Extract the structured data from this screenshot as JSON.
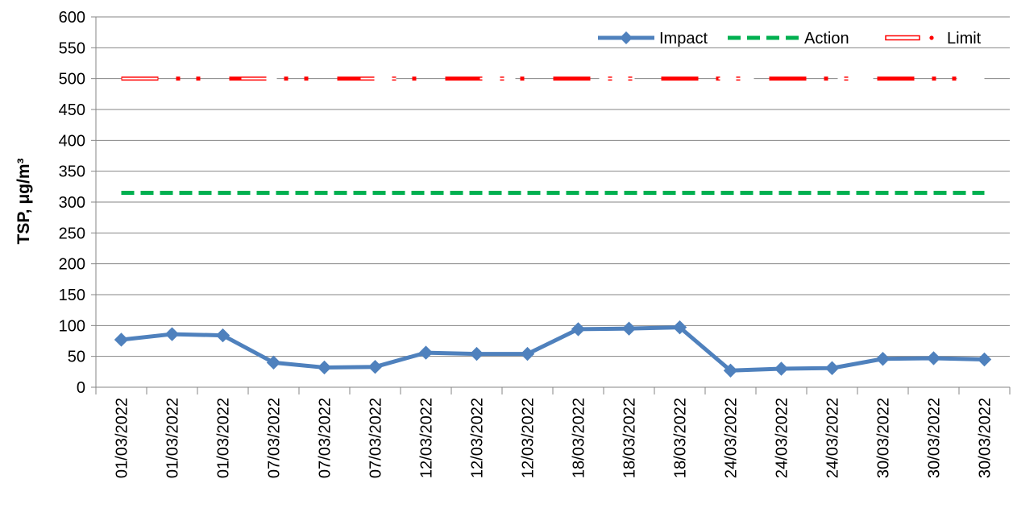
{
  "chart_data": {
    "type": "line",
    "title": "",
    "xlabel": "",
    "ylabel": "TSP, μg/m³",
    "ylim": [
      0,
      600
    ],
    "y_ticks": [
      0,
      50,
      100,
      150,
      200,
      250,
      300,
      350,
      400,
      450,
      500,
      550,
      600
    ],
    "grid": "horizontal",
    "legend_position": "top-right",
    "categories": [
      "01/03/2022",
      "01/03/2022",
      "01/03/2022",
      "07/03/2022",
      "07/03/2022",
      "07/03/2022",
      "12/03/2022",
      "12/03/2022",
      "12/03/2022",
      "18/03/2022",
      "18/03/2022",
      "18/03/2022",
      "24/03/2022",
      "24/03/2022",
      "24/03/2022",
      "30/03/2022",
      "30/03/2022",
      "30/03/2022"
    ],
    "series": [
      {
        "name": "Impact",
        "style": "solid-diamond",
        "color": "#4F81BD",
        "values": [
          77,
          86,
          84,
          40,
          32,
          33,
          56,
          54,
          54,
          94,
          95,
          97,
          27,
          30,
          31,
          46,
          47,
          45
        ]
      },
      {
        "name": "Action",
        "style": "dashed",
        "color": "#00B050",
        "values": [
          315,
          315,
          315,
          315,
          315,
          315,
          315,
          315,
          315,
          315,
          315,
          315,
          315,
          315,
          315,
          315,
          315,
          315
        ]
      },
      {
        "name": "Limit",
        "style": "dash-dot-dot",
        "color": "#FF0000",
        "values": [
          500,
          500,
          500,
          500,
          500,
          500,
          500,
          500,
          500,
          500,
          500,
          500,
          500,
          500,
          500,
          500,
          500,
          500
        ]
      }
    ]
  }
}
